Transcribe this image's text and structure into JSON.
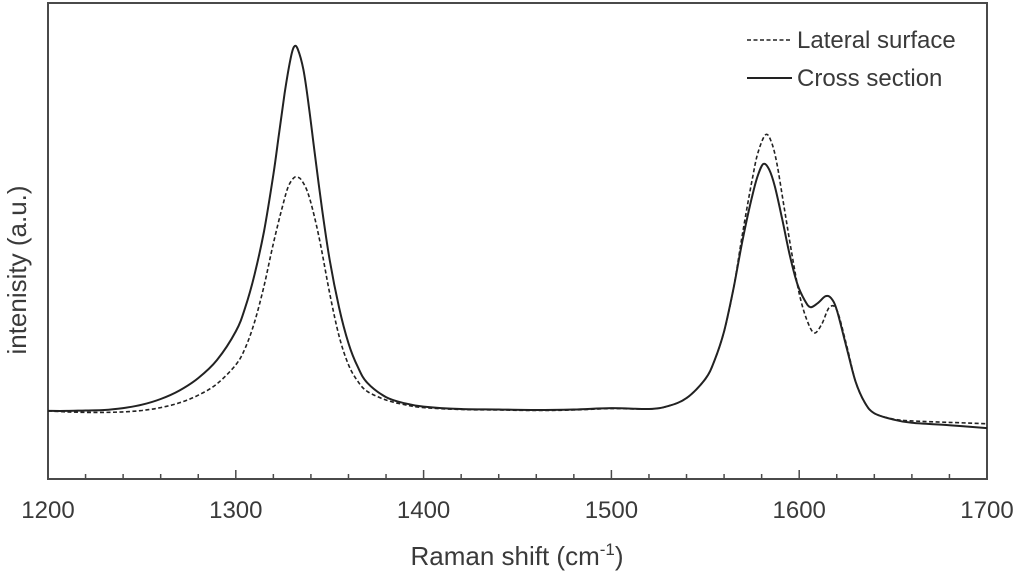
{
  "chart_data": {
    "type": "line",
    "title": "",
    "xlabel": "Raman shift (cm-1)",
    "xlabel_main": "Raman shift (cm",
    "xlabel_sup": "-1",
    "xlabel_close": ")",
    "ylabel": "intenisity (a.u.)",
    "xlim": [
      1200,
      1700
    ],
    "ylim": [
      0,
      100
    ],
    "x_ticks": [
      1200,
      1300,
      1400,
      1500,
      1600,
      1700
    ],
    "x_tick_labels": [
      "1200",
      "1300",
      "1400",
      "1500",
      "1600",
      "1700"
    ],
    "x_minor_tick_step": 20,
    "y_ticks": [],
    "grid": false,
    "legend_position": "upper right",
    "series": [
      {
        "name": "Lateral surface",
        "style": "dashed",
        "color": "#222222",
        "x": [
          1200,
          1210,
          1220,
          1230,
          1240,
          1250,
          1260,
          1270,
          1280,
          1290,
          1300,
          1305,
          1310,
          1315,
          1320,
          1325,
          1328,
          1331,
          1333,
          1335,
          1338,
          1341,
          1345,
          1350,
          1355,
          1360,
          1365,
          1370,
          1380,
          1390,
          1400,
          1420,
          1440,
          1460,
          1480,
          1500,
          1520,
          1530,
          1540,
          1550,
          1555,
          1560,
          1565,
          1570,
          1575,
          1578,
          1582,
          1585,
          1588,
          1592,
          1596,
          1600,
          1604,
          1608,
          1612,
          1616,
          1620,
          1625,
          1630,
          1635,
          1640,
          1650,
          1660,
          1680,
          1700
        ],
        "y": [
          14.3,
          14.1,
          14.0,
          14.0,
          14.1,
          14.4,
          15.0,
          16.0,
          17.6,
          20.0,
          24.0,
          27.5,
          33.0,
          40.5,
          49.5,
          57.5,
          61.5,
          63.3,
          63.4,
          62.8,
          60.5,
          56.5,
          49.5,
          39.0,
          30.0,
          24.0,
          20.5,
          18.4,
          16.6,
          15.6,
          15.0,
          14.6,
          14.5,
          14.4,
          14.5,
          14.8,
          14.7,
          15.3,
          17.0,
          21.0,
          25.0,
          31.0,
          40.0,
          52.0,
          63.0,
          68.5,
          72.3,
          71.0,
          66.5,
          57.0,
          47.5,
          39.0,
          33.5,
          30.7,
          32.5,
          36.0,
          35.5,
          28.5,
          20.5,
          16.0,
          13.8,
          12.6,
          12.2,
          11.9,
          11.6
        ]
      },
      {
        "name": "Cross section",
        "style": "solid",
        "color": "#222222",
        "x": [
          1200,
          1210,
          1220,
          1230,
          1240,
          1250,
          1260,
          1270,
          1280,
          1290,
          1300,
          1305,
          1310,
          1315,
          1320,
          1323,
          1326,
          1329,
          1331,
          1333,
          1336,
          1339,
          1342,
          1346,
          1350,
          1355,
          1360,
          1365,
          1370,
          1380,
          1390,
          1400,
          1420,
          1440,
          1460,
          1480,
          1500,
          1520,
          1530,
          1540,
          1550,
          1555,
          1560,
          1565,
          1570,
          1575,
          1578,
          1581,
          1584,
          1587,
          1591,
          1595,
          1599,
          1603,
          1606,
          1610,
          1614,
          1617,
          1620,
          1625,
          1630,
          1635,
          1640,
          1650,
          1660,
          1680,
          1700
        ],
        "y": [
          14.3,
          14.3,
          14.4,
          14.5,
          14.9,
          15.6,
          16.8,
          18.6,
          21.2,
          25.0,
          31.0,
          36.0,
          43.0,
          52.0,
          64.0,
          72.5,
          81.0,
          88.0,
          90.8,
          90.3,
          86.0,
          78.0,
          68.5,
          56.5,
          46.0,
          36.0,
          28.5,
          23.5,
          20.2,
          17.2,
          15.9,
          15.2,
          14.7,
          14.6,
          14.5,
          14.6,
          14.9,
          14.7,
          15.3,
          17.0,
          21.0,
          25.0,
          31.0,
          40.0,
          50.5,
          59.5,
          63.8,
          66.2,
          65.0,
          61.5,
          54.5,
          47.0,
          41.0,
          37.5,
          36.1,
          37.0,
          38.4,
          38.0,
          35.5,
          28.0,
          20.5,
          16.0,
          13.8,
          12.5,
          11.8,
          11.3,
          10.7
        ]
      }
    ]
  },
  "legend": {
    "items": [
      {
        "label": "Lateral surface",
        "style": "dashed"
      },
      {
        "label": "Cross section",
        "style": "solid"
      }
    ]
  }
}
